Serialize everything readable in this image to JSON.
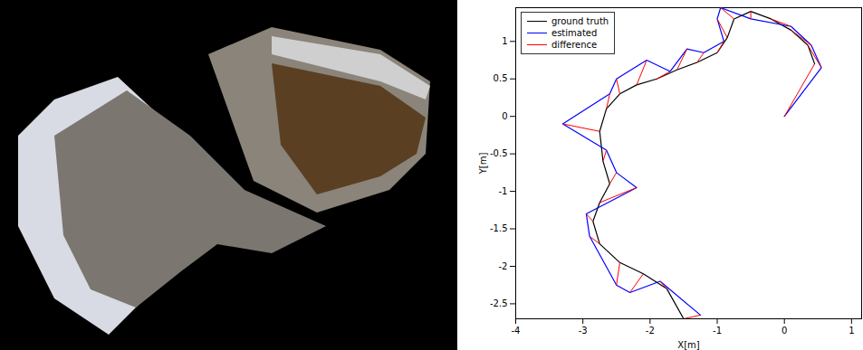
{
  "chart_data": {
    "type": "line",
    "x_label": "X[m]",
    "y_label": "Y[m]",
    "xlim": [
      -4,
      1.15
    ],
    "ylim": [
      -2.7,
      1.45
    ],
    "xticks": [
      -4,
      -3,
      -2,
      -1,
      0,
      1
    ],
    "yticks": [
      -2.5,
      -2,
      -1.5,
      -1,
      -0.5,
      0,
      0.5,
      1
    ],
    "grid": false,
    "legend": "top-left",
    "series": [
      {
        "name": "ground truth",
        "color": "#000000",
        "x": [
          0.45,
          0.35,
          0.1,
          -0.2,
          -0.5,
          -0.75,
          -0.85,
          -1.0,
          -1.3,
          -1.6,
          -1.9,
          -2.2,
          -2.45,
          -2.65,
          -2.75,
          -2.7,
          -2.6,
          -2.75,
          -2.85,
          -2.75,
          -2.45,
          -2.1,
          -1.75,
          -1.5
        ],
        "y": [
          0.7,
          0.95,
          1.15,
          1.3,
          1.4,
          1.3,
          1.05,
          0.85,
          0.72,
          0.62,
          0.5,
          0.42,
          0.3,
          0.1,
          -0.2,
          -0.6,
          -0.9,
          -1.15,
          -1.4,
          -1.7,
          -1.95,
          -2.1,
          -2.3,
          -2.7
        ]
      },
      {
        "name": "estimated",
        "color": "#0000ff",
        "x": [
          0.0,
          0.55,
          0.4,
          0.1,
          -0.5,
          -0.95,
          -1.0,
          -0.9,
          -1.2,
          -1.45,
          -1.7,
          -2.05,
          -2.5,
          -2.6,
          -3.3,
          -2.65,
          -2.5,
          -2.2,
          -2.95,
          -2.9,
          -2.5,
          -2.3,
          -1.85,
          -1.25
        ],
        "y": [
          0.0,
          0.65,
          0.95,
          1.2,
          1.3,
          1.45,
          1.3,
          1.0,
          0.85,
          0.9,
          0.6,
          0.75,
          0.5,
          0.3,
          -0.1,
          -0.45,
          -0.75,
          -0.95,
          -1.3,
          -1.6,
          -2.25,
          -2.35,
          -2.2,
          -2.65
        ]
      },
      {
        "name": "difference",
        "color": "#ff0000",
        "type": "link"
      }
    ]
  }
}
